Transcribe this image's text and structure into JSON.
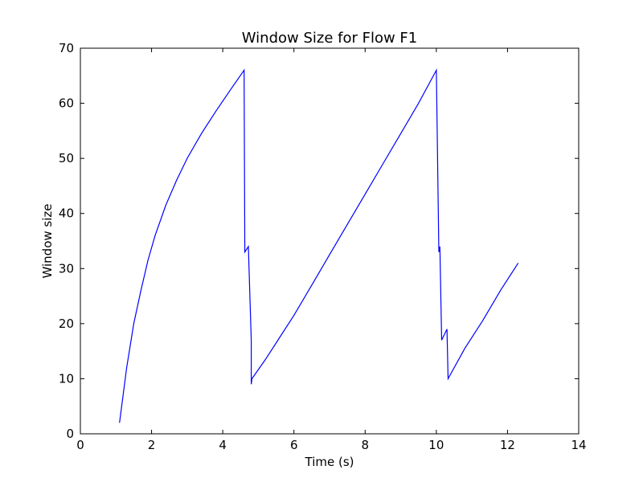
{
  "chart_data": {
    "type": "line",
    "title": "Window Size for Flow F1",
    "xlabel": "Time (s)",
    "ylabel": "Window size",
    "xlim": [
      0,
      14
    ],
    "ylim": [
      0,
      70
    ],
    "xticks": [
      0,
      2,
      4,
      6,
      8,
      10,
      12,
      14
    ],
    "yticks": [
      0,
      10,
      20,
      30,
      40,
      50,
      60,
      70
    ],
    "grid": false,
    "line_color": "#0000ff",
    "series": [
      {
        "points": [
          [
            1.1,
            2
          ],
          [
            1.3,
            12
          ],
          [
            1.5,
            20
          ],
          [
            1.7,
            26
          ],
          [
            1.9,
            31.5
          ],
          [
            2.1,
            36
          ],
          [
            2.4,
            41.5
          ],
          [
            2.7,
            46
          ],
          [
            3.0,
            50
          ],
          [
            3.4,
            54.5
          ],
          [
            3.8,
            58.5
          ],
          [
            4.2,
            62.3
          ],
          [
            4.6,
            66
          ],
          [
            4.62,
            33
          ],
          [
            4.72,
            34
          ],
          [
            4.8,
            17
          ],
          [
            4.8,
            9
          ],
          [
            4.82,
            10
          ],
          [
            5.2,
            13.5
          ],
          [
            5.6,
            17.5
          ],
          [
            6.0,
            21.5
          ],
          [
            6.5,
            27
          ],
          [
            7.0,
            32.5
          ],
          [
            7.5,
            38
          ],
          [
            8.0,
            43.5
          ],
          [
            8.5,
            49
          ],
          [
            9.0,
            54.5
          ],
          [
            9.5,
            60
          ],
          [
            10.0,
            66
          ],
          [
            10.07,
            33
          ],
          [
            10.1,
            34
          ],
          [
            10.15,
            17
          ],
          [
            10.3,
            19
          ],
          [
            10.33,
            10
          ],
          [
            10.8,
            15.5
          ],
          [
            11.3,
            20.5
          ],
          [
            11.8,
            26
          ],
          [
            12.3,
            31
          ]
        ]
      }
    ]
  }
}
